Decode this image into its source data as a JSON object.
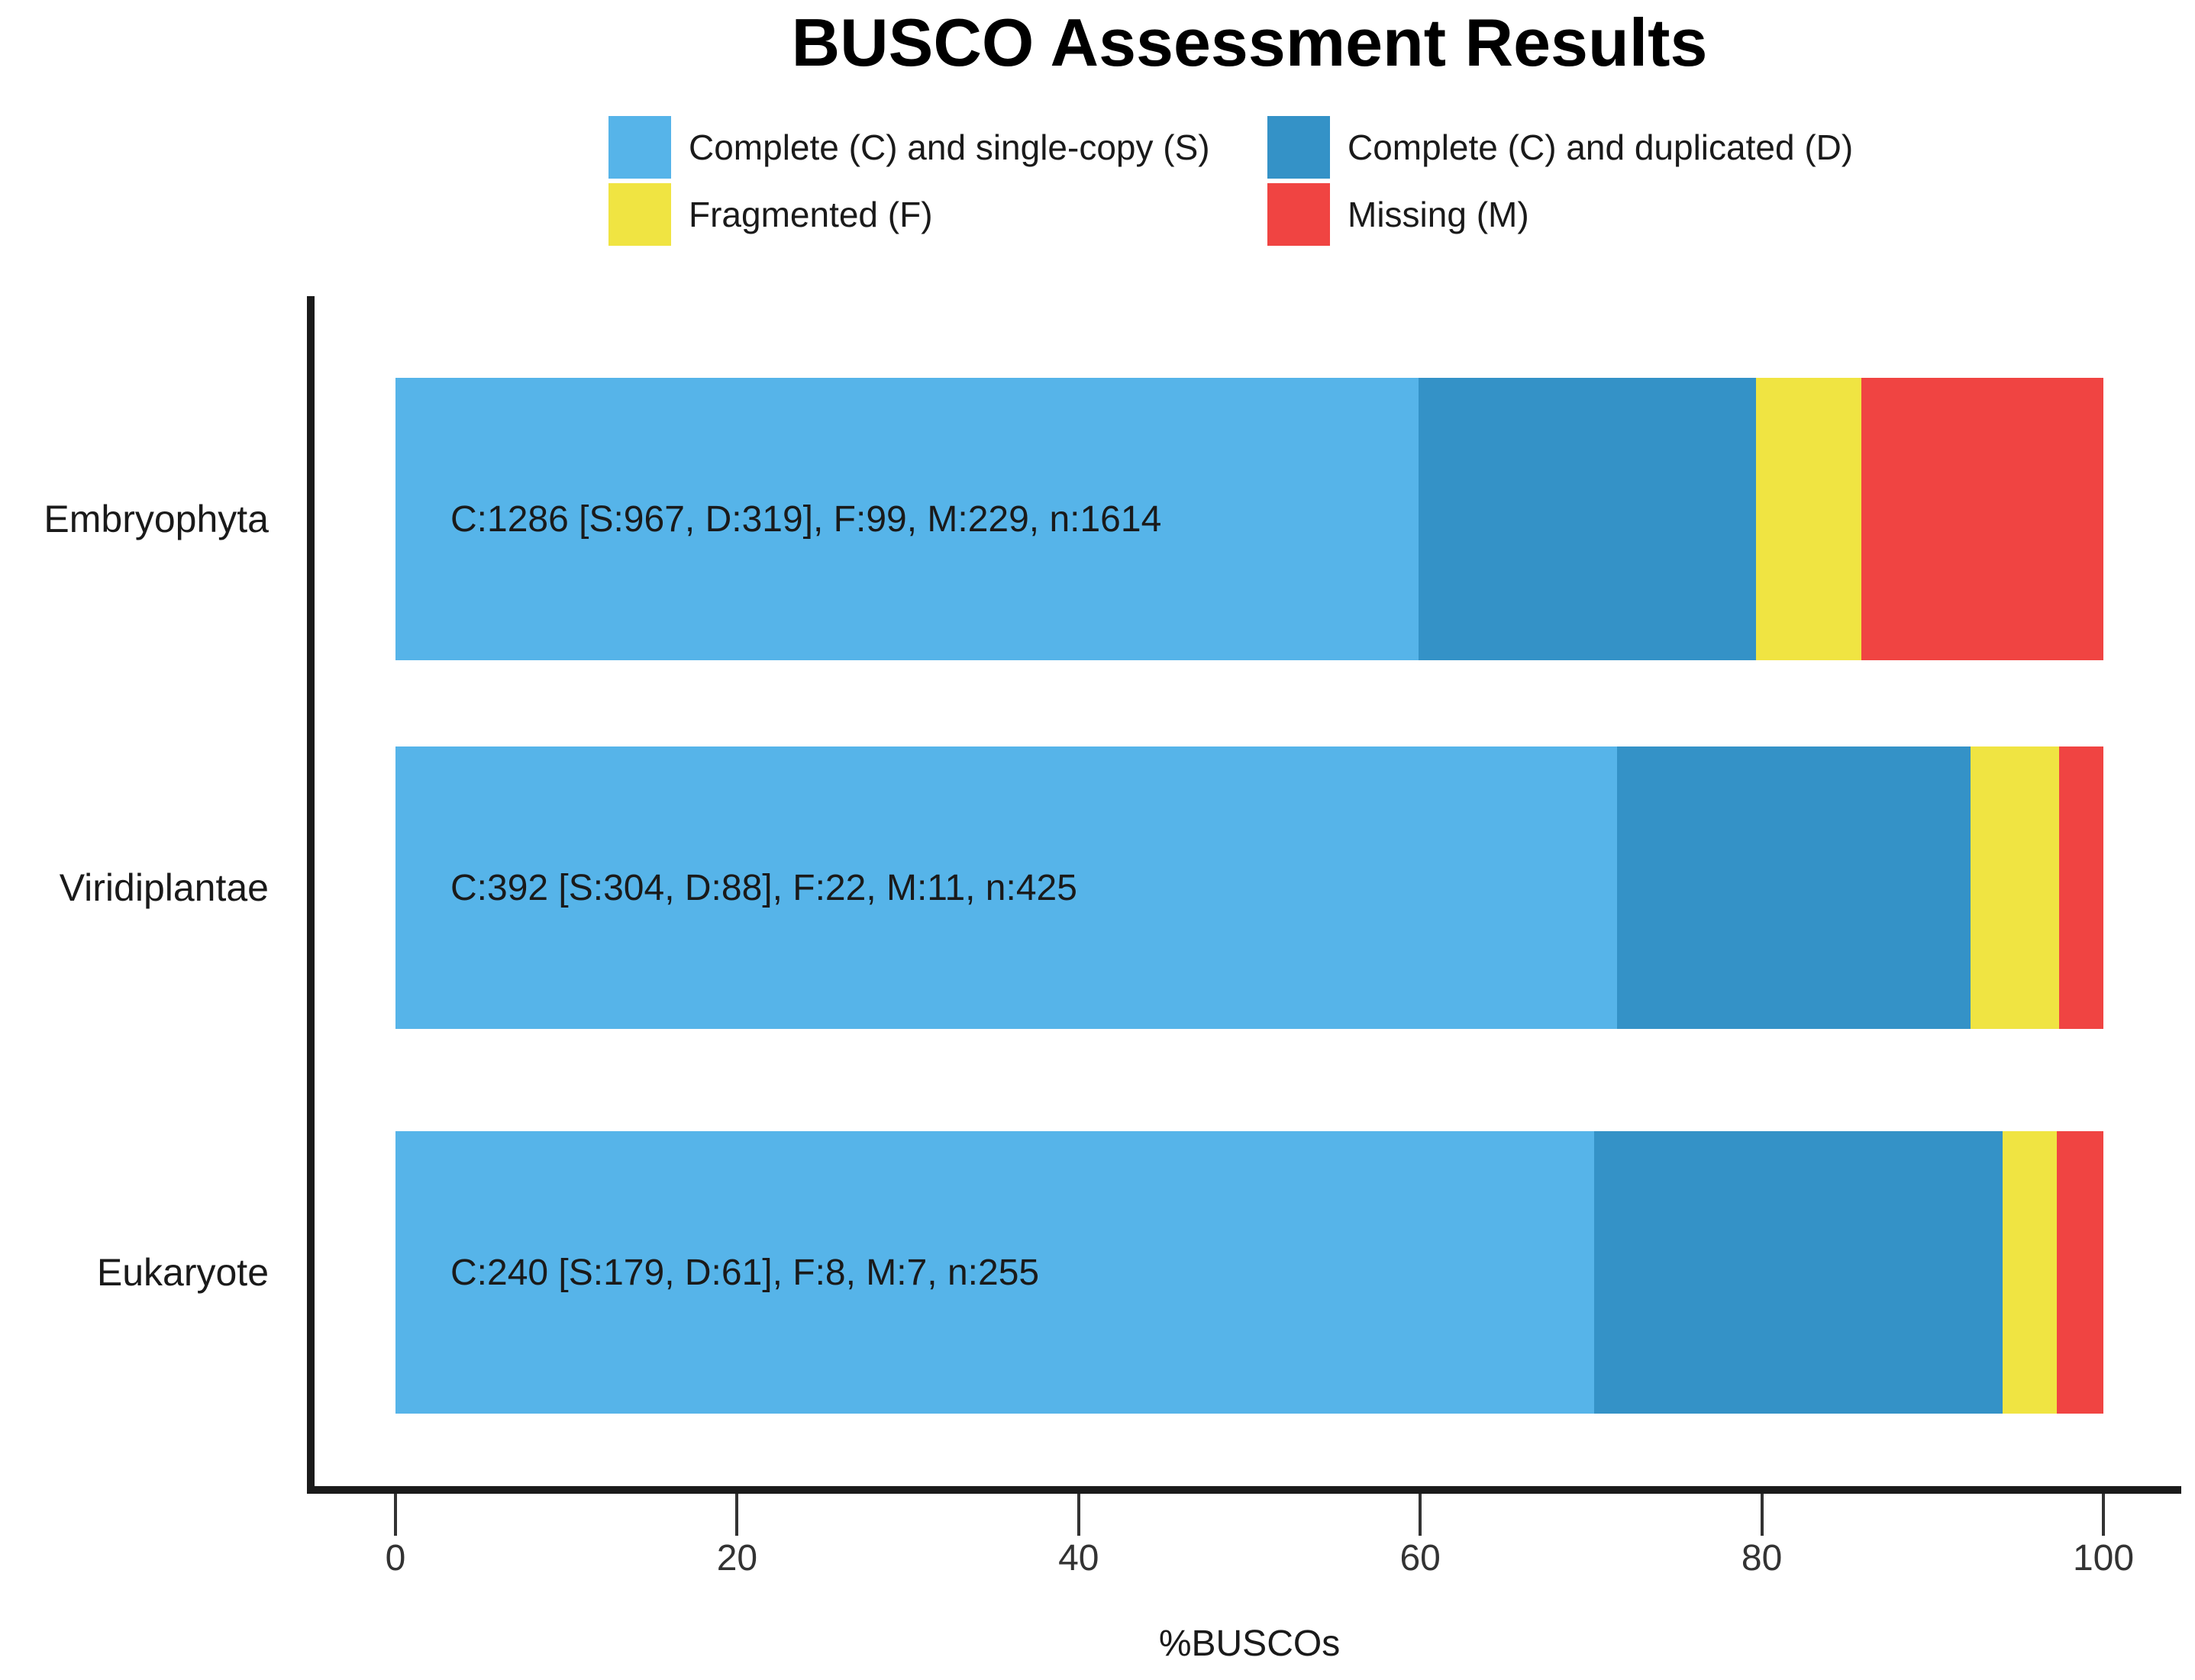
{
  "title": "BUSCO Assessment Results",
  "legend": {
    "items": [
      {
        "label": "Complete (C) and single-copy (S)",
        "color": "#56B4E9"
      },
      {
        "label": "Complete (C) and duplicated (D)",
        "color": "#3492C7"
      },
      {
        "label": "Fragmented (F)",
        "color": "#F0E442"
      },
      {
        "label": "Missing (M)",
        "color": "#F04442"
      }
    ]
  },
  "chart_data": {
    "type": "bar",
    "orientation": "horizontal-stacked",
    "title": "BUSCO Assessment Results",
    "xlabel": "%BUSCOs",
    "xlim": [
      0,
      100
    ],
    "x_ticks": [
      0,
      20,
      40,
      60,
      80,
      100
    ],
    "grid": false,
    "legend_position": "top",
    "categories": [
      "Embryophyta",
      "Viridiplantae",
      "Eukaryote"
    ],
    "totals": [
      1614,
      425,
      255
    ],
    "series": [
      {
        "name": "Complete (C) and single-copy (S)",
        "color": "#56B4E9",
        "counts": [
          967,
          304,
          179
        ]
      },
      {
        "name": "Complete (C) and duplicated (D)",
        "color": "#3492C7",
        "counts": [
          319,
          88,
          61
        ]
      },
      {
        "name": "Fragmented (F)",
        "color": "#F0E442",
        "counts": [
          99,
          22,
          8
        ]
      },
      {
        "name": "Missing (M)",
        "color": "#F04442",
        "counts": [
          229,
          11,
          7
        ]
      }
    ],
    "bar_labels": [
      "C:1286 [S:967, D:319], F:99, M:229, n:1614",
      "C:392 [S:304, D:88], F:22, M:11, n:425",
      "C:240 [S:179, D:61], F:8, M:7, n:255"
    ]
  }
}
